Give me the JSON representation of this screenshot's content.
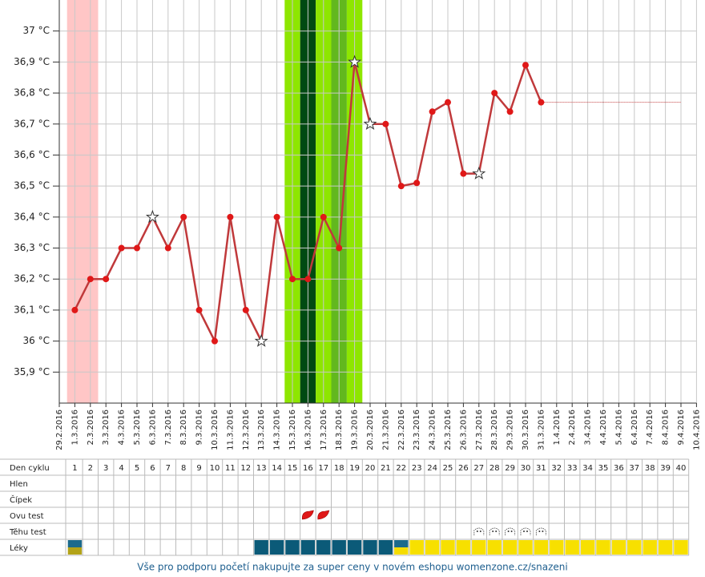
{
  "chart_data": {
    "type": "line",
    "categories": [
      "29.2.2016",
      "1.3.2016",
      "2.3.2016",
      "3.3.2016",
      "4.3.2016",
      "5.3.2016",
      "6.3.2016",
      "7.3.2016",
      "8.3.2016",
      "9.3.2016",
      "10.3.2016",
      "11.3.2016",
      "12.3.2016",
      "13.3.2016",
      "14.3.2016",
      "15.3.2016",
      "16.3.2016",
      "17.3.2016",
      "18.3.2016",
      "19.3.2016",
      "20.3.2016",
      "21.3.2016",
      "22.3.2016",
      "23.3.2016",
      "24.3.2016",
      "25.3.2016",
      "26.3.2016",
      "27.3.2016",
      "28.3.2016",
      "29.3.2016",
      "30.3.2016",
      "31.3.2016",
      "1.4.2016",
      "2.4.2016",
      "3.4.2016",
      "4.4.2016",
      "5.4.2016",
      "6.4.2016",
      "7.4.2016",
      "8.4.2016",
      "9.4.2016",
      "10.4.2016"
    ],
    "values": [
      null,
      36.1,
      36.2,
      36.2,
      36.3,
      36.3,
      36.4,
      36.3,
      36.4,
      36.1,
      36.0,
      36.4,
      36.1,
      36.0,
      36.4,
      36.2,
      36.2,
      36.4,
      36.3,
      36.9,
      36.7,
      36.7,
      36.5,
      36.51,
      36.74,
      36.77,
      36.54,
      36.54,
      36.8,
      36.74,
      36.89,
      36.77,
      null,
      null,
      null,
      null,
      null,
      null,
      null,
      null,
      null,
      null
    ],
    "color": "#c0393b",
    "point_color": "#e01818",
    "star_points": [
      6,
      13,
      19,
      20,
      27
    ],
    "ylim": [
      35.8,
      37.1
    ],
    "yticks": [
      {
        "value": 35.9,
        "label": "35,9 °C"
      },
      {
        "value": 36.0,
        "label": "36 °C"
      },
      {
        "value": 36.1,
        "label": "36,1 °C"
      },
      {
        "value": 36.2,
        "label": "36,2 °C"
      },
      {
        "value": 36.3,
        "label": "36,3 °C"
      },
      {
        "value": 36.4,
        "label": "36,4 °C"
      },
      {
        "value": 36.5,
        "label": "36,5 °C"
      },
      {
        "value": 36.6,
        "label": "36,6 °C"
      },
      {
        "value": 36.7,
        "label": "36,7 °C"
      },
      {
        "value": 36.8,
        "label": "36,8 °C"
      },
      {
        "value": 36.9,
        "label": "36,9 °C"
      },
      {
        "value": 37.0,
        "label": "37 °C"
      }
    ],
    "grid": true,
    "bands": [
      {
        "start": 1,
        "end": 2,
        "color": "#ffc6c6"
      },
      {
        "start": 15,
        "end": 15,
        "color": "#8ee600"
      },
      {
        "start": 16,
        "end": 16,
        "color": "#004a12"
      },
      {
        "start": 17,
        "end": 17,
        "color": "#8ee600"
      },
      {
        "start": 18,
        "end": 18,
        "color": "#62b81e"
      },
      {
        "start": 19,
        "end": 19,
        "color": "#8ee600"
      }
    ]
  },
  "table": {
    "rows": [
      "Den cyklu",
      "Hlen",
      "Čípek",
      "Ovu test",
      "Těhu test",
      "Léky"
    ],
    "cycle_days": [
      1,
      2,
      3,
      4,
      5,
      6,
      7,
      8,
      9,
      10,
      11,
      12,
      13,
      14,
      15,
      16,
      17,
      18,
      19,
      20,
      21,
      22,
      23,
      24,
      25,
      26,
      27,
      28,
      29,
      30,
      31,
      32,
      33,
      34,
      35,
      36,
      37,
      38,
      39,
      40
    ],
    "ovu_test_days": [
      16,
      17
    ],
    "tehu_test_days": [
      27,
      28,
      29,
      30,
      31
    ],
    "leky": [
      {
        "start": 1,
        "end": 1,
        "colors": [
          "#1b6a8c",
          "#b3a318"
        ]
      },
      {
        "start": 13,
        "end": 21,
        "colors": [
          "#0b5a78"
        ]
      },
      {
        "start": 22,
        "end": 22,
        "colors": [
          "#1b6a8c",
          "#f5dc00"
        ]
      },
      {
        "start": 23,
        "end": 40,
        "colors": [
          "#f7e000"
        ]
      }
    ]
  },
  "footer": {
    "link": "Vše pro podporu početí nakupujte za super ceny v novém eshopu womenzone.cz/snazeni"
  }
}
